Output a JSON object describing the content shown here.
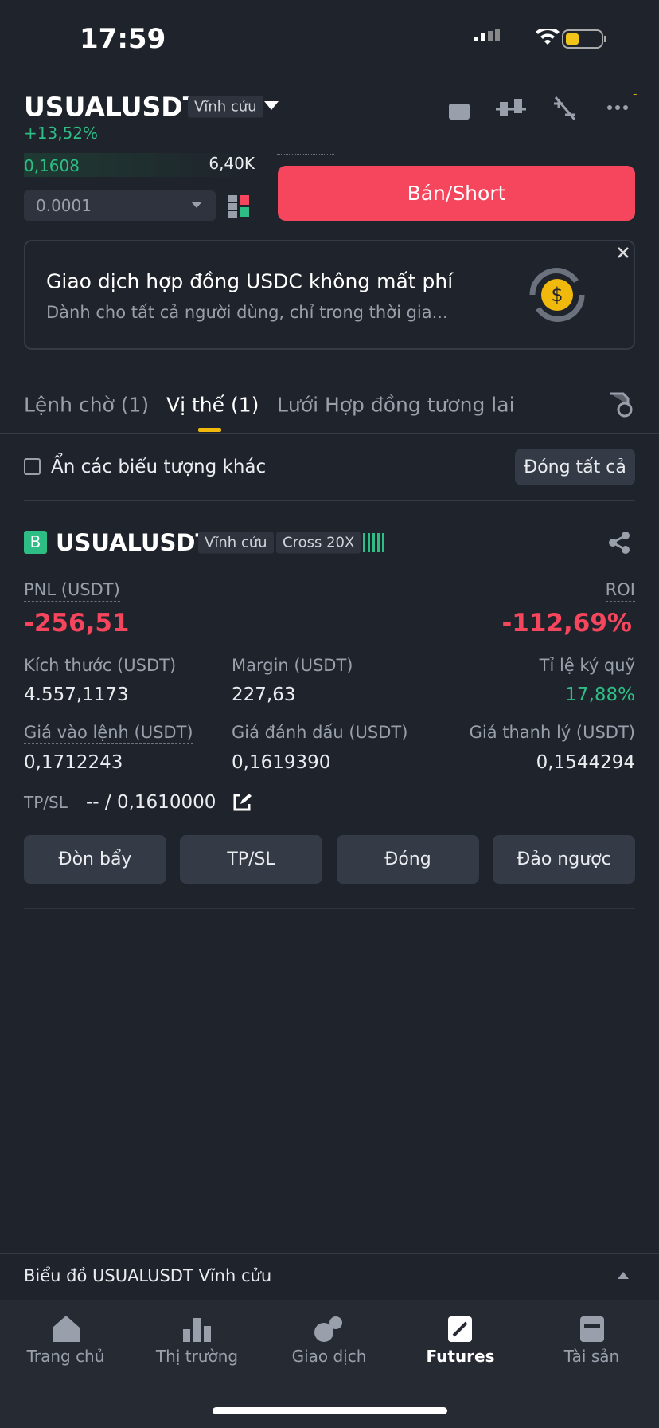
{
  "status": {
    "time": "17:59"
  },
  "header": {
    "symbol": "USUALUSDT",
    "tag": "Vĩnh cửu",
    "change": "+13,52%"
  },
  "orderbook": {
    "price": "0,1608",
    "quantity": "6,40K",
    "step": "0.0001"
  },
  "sell_button": "Bán/Short",
  "banner": {
    "title": "Giao dịch hợp đồng USDC không mất phí",
    "subtitle": "Dành cho tất cả người dùng, chỉ trong thời gia..."
  },
  "tabs": [
    "Lệnh chờ (1)",
    "Vị thế (1)",
    "Lưới Hợp đồng tương lai"
  ],
  "filter": {
    "label": "Ẩn các biểu tượng khác",
    "close_all": "Đóng tất cả"
  },
  "position": {
    "side": "B",
    "symbol": "USUALUSDT",
    "tags": [
      "Vĩnh cửu",
      "Cross 20X"
    ],
    "pnl": {
      "label": "PNL (USDT)",
      "value": "-256,51"
    },
    "roi": {
      "label": "ROI",
      "value": "-112,69%"
    },
    "size": {
      "label": "Kích thước (USDT)",
      "value": "4.557,1173"
    },
    "margin": {
      "label": "Margin (USDT)",
      "value": "227,63"
    },
    "margin_ratio": {
      "label": "Tỉ lệ ký quỹ",
      "value": "17,88%"
    },
    "entry_price": {
      "label": "Giá vào lệnh (USDT)",
      "value": "0,1712243"
    },
    "mark_price": {
      "label": "Giá đánh dấu (USDT)",
      "value": "0,1619390"
    },
    "liq_price": {
      "label": "Giá thanh lý (USDT)",
      "value": "0,1544294"
    },
    "tpsl": {
      "label": "TP/SL",
      "value": "-- / 0,1610000"
    },
    "actions": [
      "Đòn bẩy",
      "TP/SL",
      "Đóng",
      "Đảo ngược"
    ]
  },
  "chart_bar": "Biểu đồ USUALUSDT Vĩnh cửu",
  "nav": [
    "Trang chủ",
    "Thị trường",
    "Giao dịch",
    "Futures",
    "Tài sản"
  ]
}
